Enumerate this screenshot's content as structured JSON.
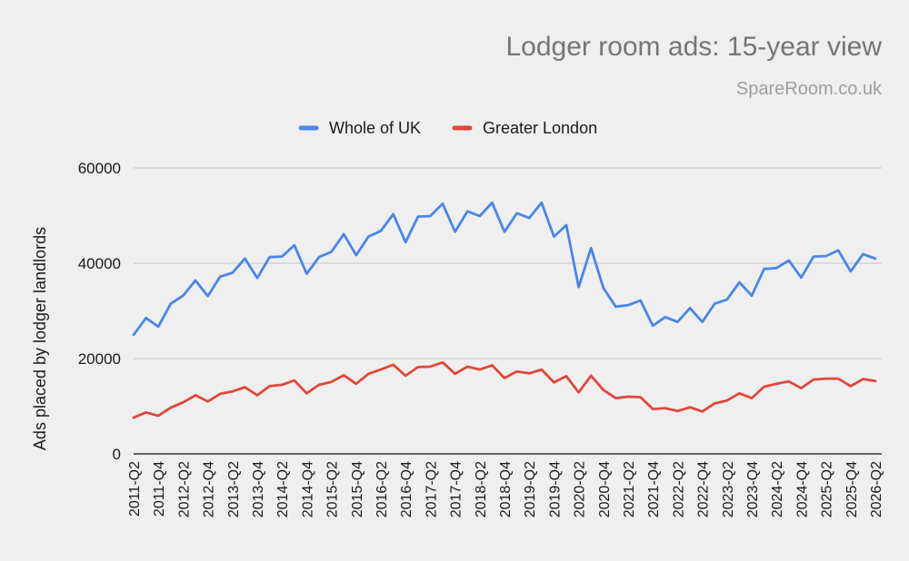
{
  "chart_data": {
    "type": "line",
    "title": "Lodger room ads: 15-year view",
    "subtitle": "SpareRoom.co.uk",
    "ylabel": "Ads placed by lodger landlords",
    "xlabel": "",
    "ylim": [
      0,
      60000
    ],
    "yticks": [
      0,
      20000,
      40000,
      60000
    ],
    "grid": true,
    "legend_position": "top-center",
    "categories": [
      "2011-Q2",
      "2011-Q3",
      "2011-Q4",
      "2012-Q1",
      "2012-Q2",
      "2012-Q3",
      "2012-Q4",
      "2013-Q1",
      "2013-Q2",
      "2013-Q3",
      "2013-Q4",
      "2014-Q1",
      "2014-Q2",
      "2014-Q3",
      "2014-Q4",
      "2015-Q1",
      "2015-Q2",
      "2015-Q3",
      "2015-Q4",
      "2016-Q1",
      "2016-Q2",
      "2016-Q3",
      "2016-Q4",
      "2017-Q1",
      "2017-Q2",
      "2017-Q3",
      "2017-Q4",
      "2018-Q1",
      "2018-Q2",
      "2018-Q3",
      "2018-Q4",
      "2019-Q1",
      "2019-Q2",
      "2019-Q3",
      "2019-Q4",
      "2020-Q1",
      "2020-Q2",
      "2020-Q3",
      "2020-Q4",
      "2021-Q1",
      "2021-Q2",
      "2021-Q3",
      "2021-Q4",
      "2022-Q1",
      "2022-Q2",
      "2022-Q3",
      "2022-Q4",
      "2023-Q1",
      "2023-Q2",
      "2023-Q3",
      "2023-Q4",
      "2024-Q1",
      "2024-Q2",
      "2024-Q3",
      "2024-Q4",
      "2025-Q1",
      "2025-Q2",
      "2025-Q3",
      "2025-Q4",
      "2026-Q1",
      "2026-Q2"
    ],
    "tick_labels": [
      "2011-Q2",
      "2011-Q4",
      "2012-Q2",
      "2012-Q4",
      "2013-Q2",
      "2013-Q4",
      "2014-Q2",
      "2014-Q4",
      "2015-Q2",
      "2015-Q4",
      "2016-Q2",
      "2016-Q4",
      "2017-Q2",
      "2017-Q4",
      "2018-Q2",
      "2018-Q4",
      "2019-Q2",
      "2019-Q4",
      "2020-Q2",
      "2020-Q4",
      "2021-Q2",
      "2021-Q4",
      "2022-Q2",
      "2022-Q4",
      "2023-Q2",
      "2023-Q4",
      "2024-Q2",
      "2024-Q4",
      "2025-Q2",
      "2025-Q4",
      "2026-Q2"
    ],
    "series": [
      {
        "name": "Whole of UK",
        "color": "#4a86e8",
        "values": [
          25000,
          28500,
          26700,
          31500,
          33200,
          36400,
          33100,
          37200,
          38000,
          41000,
          36900,
          41300,
          41400,
          43800,
          37800,
          41300,
          42400,
          46100,
          41700,
          45600,
          46800,
          50300,
          44400,
          49800,
          49900,
          52500,
          46600,
          50900,
          49900,
          52700,
          46600,
          50500,
          49500,
          52700,
          45600,
          48000,
          35000,
          43200,
          34800,
          30900,
          31200,
          32200,
          26900,
          28700,
          27700,
          30600,
          27700,
          31500,
          32400,
          36000,
          33200,
          38800,
          39000,
          40600,
          37000,
          41400,
          41500,
          42700,
          38300,
          41900,
          41000
        ]
      },
      {
        "name": "Greater London",
        "color": "#e0483a",
        "values": [
          7600,
          8700,
          8000,
          9700,
          10800,
          12300,
          11000,
          12600,
          13100,
          14000,
          12300,
          14200,
          14500,
          15400,
          12700,
          14500,
          15100,
          16500,
          14700,
          16800,
          17700,
          18700,
          16400,
          18200,
          18300,
          19200,
          16800,
          18300,
          17700,
          18600,
          15900,
          17300,
          16900,
          17700,
          15000,
          16300,
          12900,
          16400,
          13400,
          11700,
          12000,
          11900,
          9400,
          9600,
          9000,
          9800,
          8900,
          10600,
          11200,
          12700,
          11700,
          14100,
          14700,
          15200,
          13800,
          15600,
          15800,
          15800,
          14200,
          15700,
          15300
        ]
      }
    ]
  }
}
